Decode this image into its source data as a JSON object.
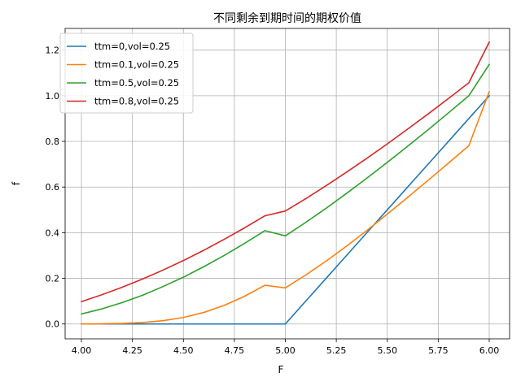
{
  "chart_data": {
    "type": "line",
    "title": "不同剩余到期时间的期权价值",
    "xlabel": "F",
    "ylabel": "f",
    "xlim": [
      3.92,
      6.1
    ],
    "ylim": [
      -0.065,
      1.295
    ],
    "xticks": [
      "4.00",
      "4.25",
      "4.50",
      "4.75",
      "5.00",
      "5.25",
      "5.50",
      "5.75",
      "6.00"
    ],
    "yticks": [
      "0.0",
      "0.2",
      "0.4",
      "0.6",
      "0.8",
      "1.0",
      "1.2"
    ],
    "grid": true,
    "legend_position": "top-left",
    "x": [
      4.0,
      4.1,
      4.2,
      4.3,
      4.4,
      4.5,
      4.6,
      4.7,
      4.8,
      4.9,
      5.0,
      5.1,
      5.2,
      5.3,
      5.4,
      5.5,
      5.6,
      5.7,
      5.8,
      5.9,
      6.0
    ],
    "series": [
      {
        "name": "ttm=0,vol=0.25",
        "color": "#1f77b4",
        "values": [
          0,
          0,
          0,
          0,
          0,
          0,
          0,
          0,
          0,
          0,
          0,
          0.1,
          0.2,
          0.3,
          0.4,
          0.5,
          0.6,
          0.7,
          0.8,
          0.9,
          1.0
        ]
      },
      {
        "name": "ttm=0.1,vol=0.25",
        "color": "#ff7f0e",
        "values": [
          0.0002,
          0.0008,
          0.0025,
          0.0065,
          0.0145,
          0.0285,
          0.0505,
          0.0815,
          0.1215,
          0.1698,
          0.158,
          0.2145,
          0.2755,
          0.341,
          0.41,
          0.4815,
          0.5548,
          0.6295,
          0.705,
          0.781,
          1.018
        ]
      },
      {
        "name": "ttm=0.5,vol=0.25",
        "color": "#2ca02c",
        "values": [
          0.044,
          0.066,
          0.094,
          0.126,
          0.164,
          0.205,
          0.251,
          0.3,
          0.353,
          0.409,
          0.386,
          0.445,
          0.507,
          0.572,
          0.639,
          0.708,
          0.779,
          0.851,
          0.925,
          1.0,
          1.137
        ]
      },
      {
        "name": "ttm=0.8,vol=0.25",
        "color": "#d62728",
        "values": [
          0.098,
          0.128,
          0.161,
          0.197,
          0.236,
          0.278,
          0.323,
          0.371,
          0.421,
          0.474,
          0.495,
          0.549,
          0.606,
          0.665,
          0.726,
          0.789,
          0.854,
          0.92,
          0.988,
          1.057,
          1.235
        ]
      }
    ]
  }
}
